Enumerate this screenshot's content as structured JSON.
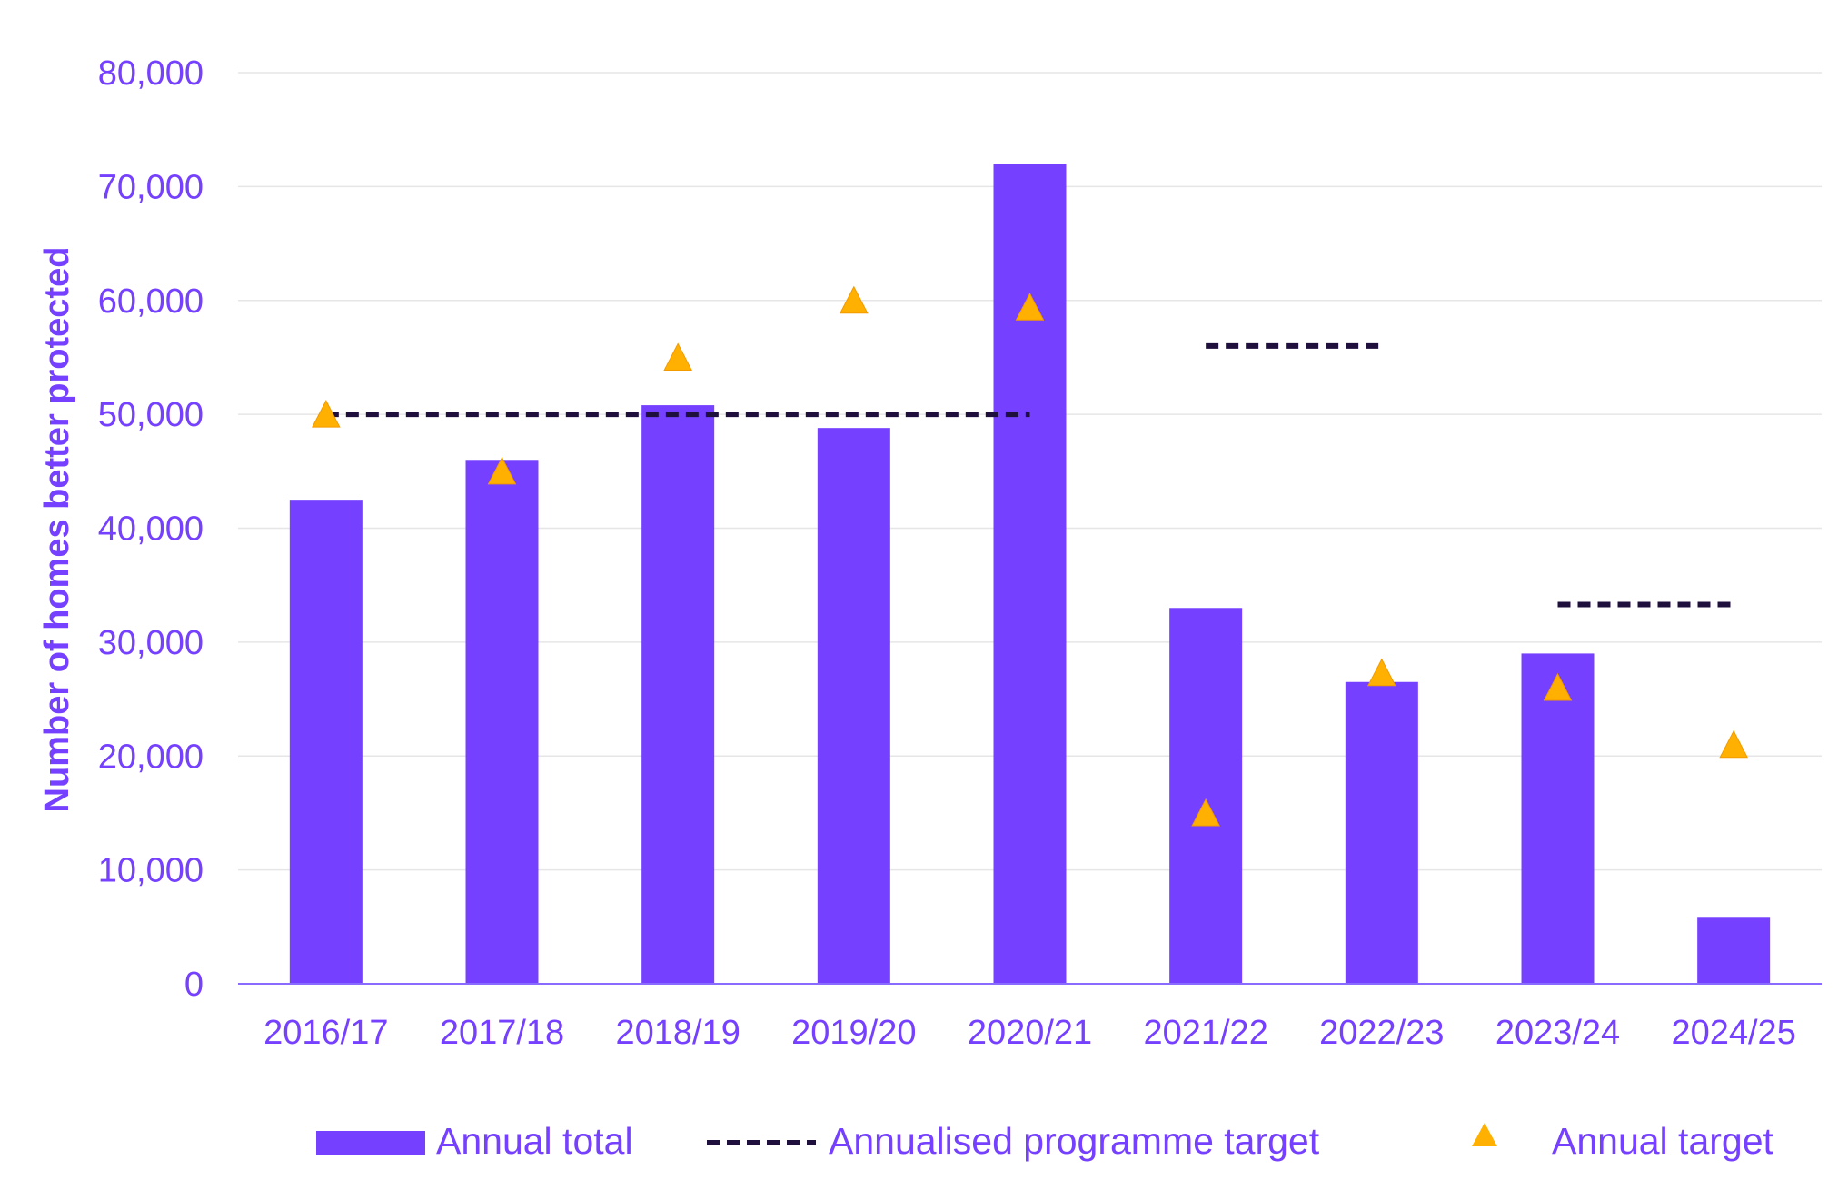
{
  "chart_data": {
    "type": "bar",
    "title": "",
    "xlabel": "",
    "ylabel": "Number of homes better protected",
    "ylim": [
      0,
      80000
    ],
    "y_ticks": [
      0,
      10000,
      20000,
      30000,
      40000,
      50000,
      60000,
      70000,
      80000
    ],
    "y_tick_labels": [
      "0",
      "10,000",
      "20,000",
      "30,000",
      "40,000",
      "50,000",
      "60,000",
      "70,000",
      "80,000"
    ],
    "categories": [
      "2016/17",
      "2017/18",
      "2018/19",
      "2019/20",
      "2020/21",
      "2021/22",
      "2022/23",
      "2023/24",
      "2024/25"
    ],
    "grid": "horizontal",
    "legend_position": "bottom",
    "series": [
      {
        "name": "Annual total",
        "type": "bar",
        "color": "#7540ff",
        "values": [
          42500,
          46000,
          50800,
          48800,
          72000,
          33000,
          26500,
          29000,
          5800
        ]
      },
      {
        "name": "Annualised programme target",
        "type": "dashed-line",
        "color": "#1f0f3d",
        "segments": [
          {
            "from": "2016/17",
            "to": "2020/21",
            "value": 50000
          },
          {
            "from": "2021/22",
            "to": "2022/23",
            "value": 56000
          },
          {
            "from": "2023/24",
            "to": "2024/25",
            "value": 33300
          }
        ]
      },
      {
        "name": "Annual target",
        "type": "scatter",
        "marker": "triangle",
        "color": "#ffb000",
        "values": [
          50000,
          45000,
          55000,
          60000,
          59400,
          15000,
          27300,
          26000,
          21000
        ]
      }
    ]
  }
}
